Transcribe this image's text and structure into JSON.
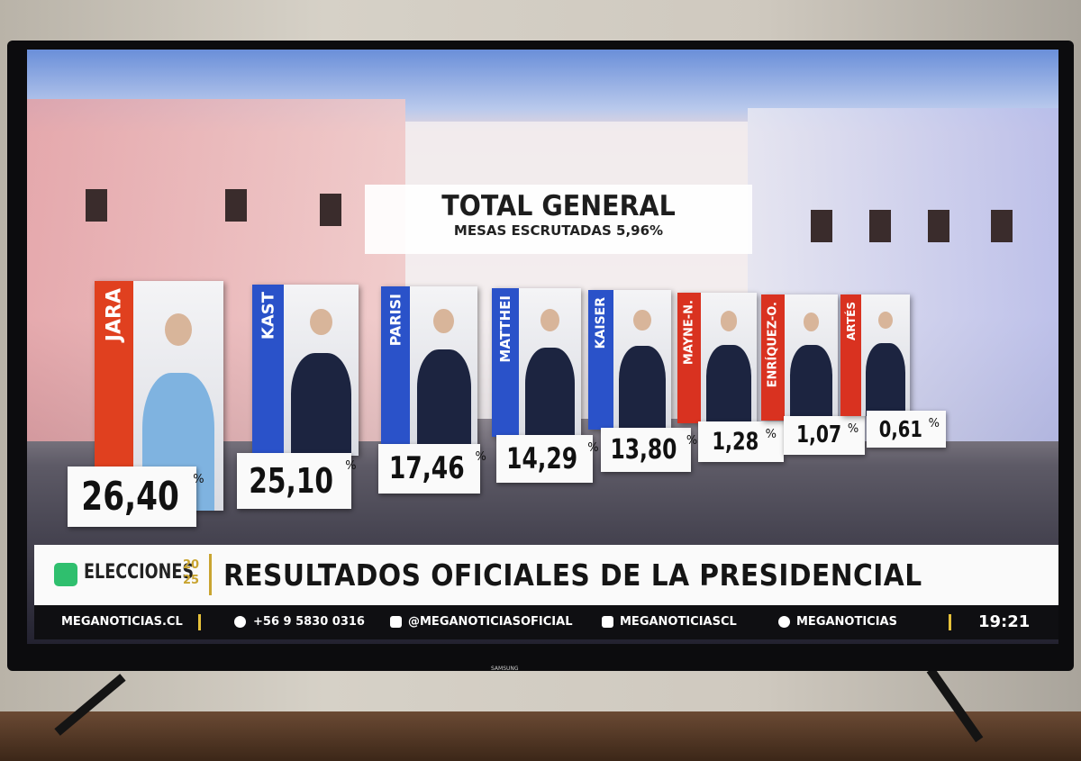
{
  "header": {
    "title": "TOTAL GENERAL",
    "subtitle": "MESAS ESCRUTADAS 5,96%"
  },
  "candidates": [
    {
      "name": "JARA",
      "percent": "26,40",
      "unit": "%",
      "color": "#e0401f"
    },
    {
      "name": "KAST",
      "percent": "25,10",
      "unit": "%",
      "color": "#2a52c9"
    },
    {
      "name": "PARISI",
      "percent": "17,46",
      "unit": "%",
      "color": "#2a52c9"
    },
    {
      "name": "MATTHEI",
      "percent": "14,29",
      "unit": "%",
      "color": "#2a52c9"
    },
    {
      "name": "KAISER",
      "percent": "13,80",
      "unit": "%",
      "color": "#2a52c9"
    },
    {
      "name": "MAYNE-N.",
      "percent": "1,28",
      "unit": "%",
      "color": "#d93220"
    },
    {
      "name": "ENRÍQUEZ-O.",
      "percent": "1,07",
      "unit": "%",
      "color": "#d93220"
    },
    {
      "name": "ARTÉS",
      "percent": "0,61",
      "unit": "%",
      "color": "#d93220"
    }
  ],
  "ticker": {
    "brand": "ELECCIONES",
    "year_top": "20",
    "year_bottom": "25",
    "headline": "RESULTADOS OFICIALES DE LA PRESIDENCIAL"
  },
  "footer": {
    "site": "MEGANOTICIAS.CL",
    "phone": "+56 9 5830 0316",
    "youtube": "@MEGANOTICIASOFICIAL",
    "twitch": "MEGANOTICIASCL",
    "spotify": "MEGANOTICIAS",
    "time": "19:21"
  },
  "tv": {
    "brand": "SAMSUNG"
  }
}
